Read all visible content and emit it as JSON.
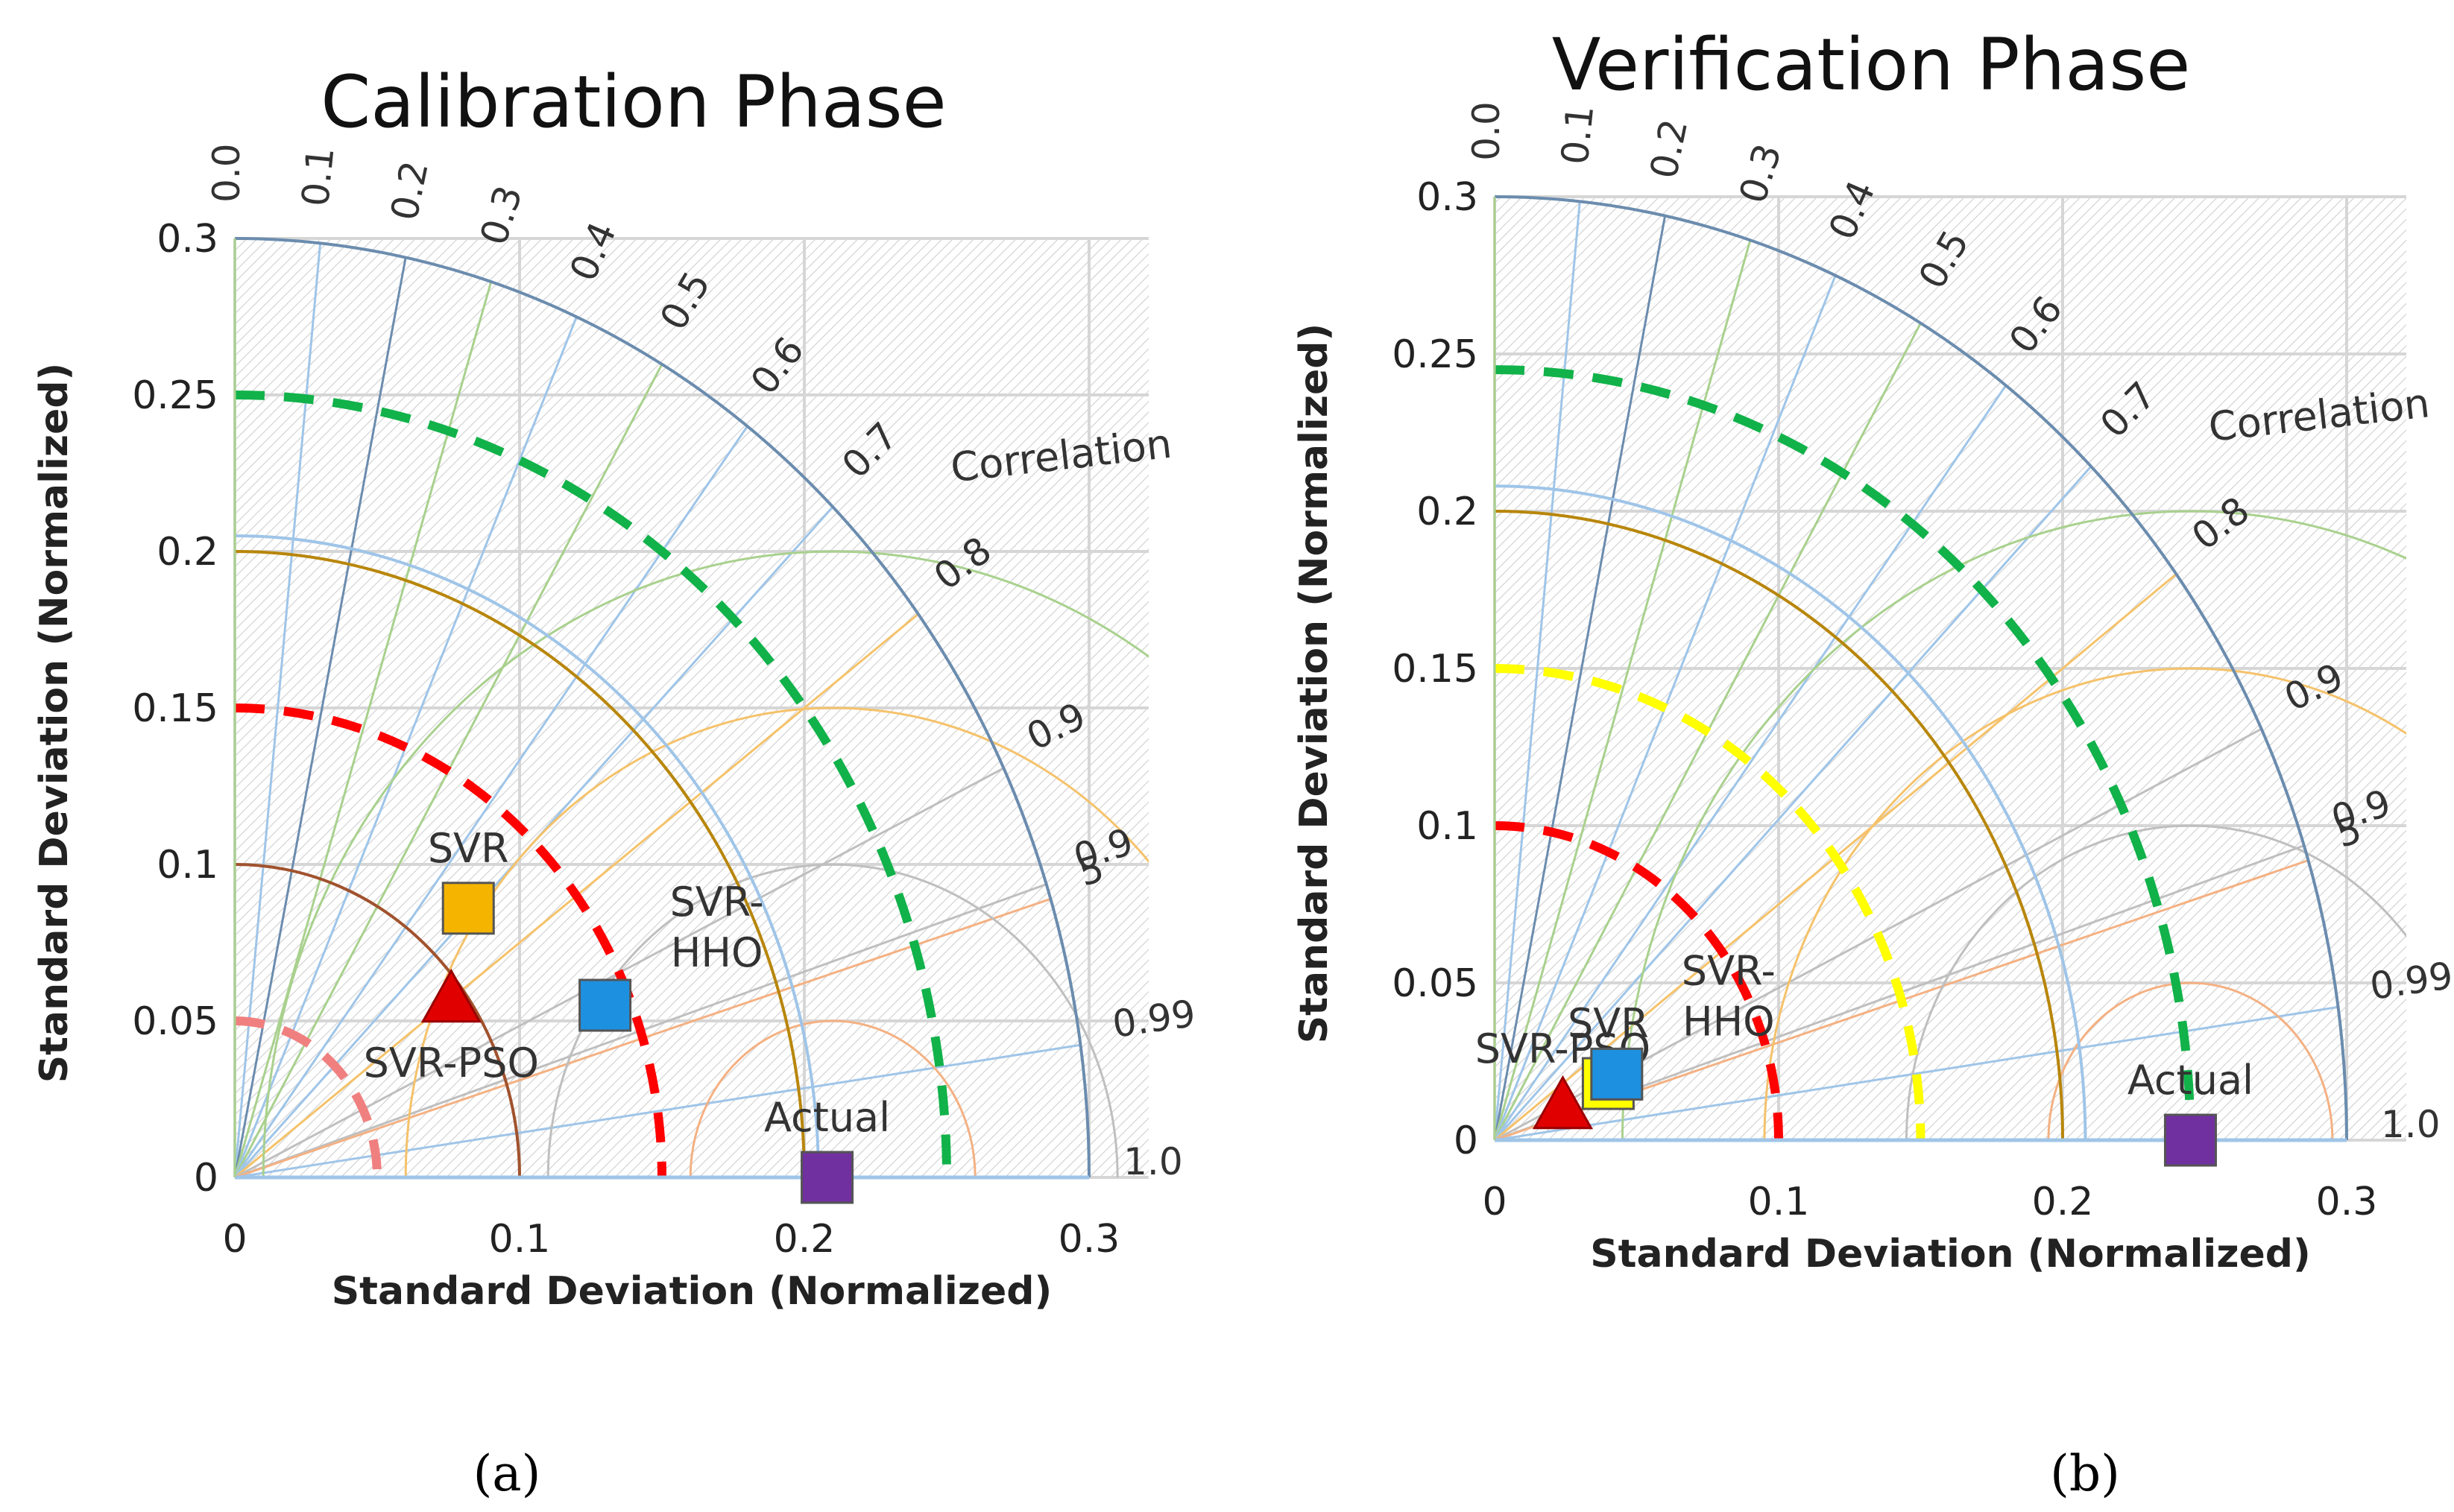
{
  "figure": {
    "captions": [
      "(a)",
      "(b)"
    ]
  },
  "colors": {
    "grid": "#d6d6d6",
    "hatch": "#c9c9c9",
    "axis_arc": "#6b8cae",
    "svr": "#f5b400",
    "svr_pso": "#e00000",
    "svr_hho": "#1e90e0",
    "actual": "#7030a0",
    "svr_verification": "#ffff00",
    "green_dash": "#11b24a",
    "red_dash": "#ff0000",
    "yellow_dash": "#ffff00",
    "light_red_dash": "#f08080"
  },
  "chart_data": [
    {
      "type": "scatter",
      "subtype": "taylor-diagram",
      "title": "Calibration Phase",
      "xlabel": "Standard Deviation (Normalized)",
      "ylabel": "Standard Deviation (Normalized)",
      "xlim": [
        0,
        0.3
      ],
      "ylim": [
        0,
        0.3
      ],
      "x_ticks": [
        "0",
        "0.1",
        "0.2",
        "0.3"
      ],
      "y_ticks": [
        "0",
        "0.05",
        "0.1",
        "0.15",
        "0.2",
        "0.25",
        "0.3"
      ],
      "correlation_label": "Correlation",
      "correlation_ticks": [
        {
          "label": "0.0",
          "r": 0.0
        },
        {
          "label": "0.1",
          "r": 0.1
        },
        {
          "label": "0.2",
          "r": 0.2
        },
        {
          "label": "0.3",
          "r": 0.3
        },
        {
          "label": "0.4",
          "r": 0.4
        },
        {
          "label": "0.5",
          "r": 0.5
        },
        {
          "label": "0.6",
          "r": 0.6
        },
        {
          "label": "0.7",
          "r": 0.7
        },
        {
          "label": "0.8",
          "r": 0.8
        },
        {
          "label": "0.9",
          "r": 0.9
        },
        {
          "label": "0.9",
          "r": 0.95
        },
        {
          "label": "5",
          "r": 0.955
        },
        {
          "label": "0.99",
          "r": 0.99
        },
        {
          "label": "1.0",
          "r": 1.0
        }
      ],
      "reference_std": 0.21,
      "std_arcs": [
        {
          "sd": 0.05,
          "style": "dashed",
          "color": "light_red_dash"
        },
        {
          "sd": 0.1,
          "style": "solid",
          "color": "#a0522d"
        },
        {
          "sd": 0.15,
          "style": "dashed",
          "color": "red_dash"
        },
        {
          "sd": 0.2,
          "style": "solid",
          "color": "#b8860b"
        },
        {
          "sd": 0.205,
          "style": "solid",
          "color": "#9fc5e8"
        },
        {
          "sd": 0.25,
          "style": "dashed",
          "color": "green_dash"
        },
        {
          "sd": 0.3,
          "style": "solid",
          "color": "axis_arc"
        }
      ],
      "rmsd_arcs": [
        0.05,
        0.1,
        0.15,
        0.2
      ],
      "series": [
        {
          "name": "SVR",
          "x": 0.082,
          "y": 0.086,
          "marker": "square",
          "color": "svr",
          "label_pos": "above"
        },
        {
          "name": "SVR-PSO",
          "x": 0.076,
          "y": 0.056,
          "marker": "triangle",
          "color": "svr_pso",
          "label_pos": "below"
        },
        {
          "name": "SVR-HHO",
          "x": 0.13,
          "y": 0.055,
          "marker": "square",
          "color": "svr_hho",
          "label_lines": [
            "SVR-",
            "HHO"
          ]
        },
        {
          "name": "Actual",
          "x": 0.208,
          "y": 0.0,
          "marker": "square",
          "color": "actual",
          "label_pos": "above"
        }
      ]
    },
    {
      "type": "scatter",
      "subtype": "taylor-diagram",
      "title": "Verification Phase",
      "xlabel": "Standard Deviation (Normalized)",
      "ylabel": "Standard Deviation (Normalized)",
      "xlim": [
        0,
        0.3
      ],
      "ylim": [
        0,
        0.3
      ],
      "x_ticks": [
        "0",
        "0.1",
        "0.2",
        "0.3"
      ],
      "y_ticks": [
        "0",
        "0.05",
        "0.1",
        "0.15",
        "0.2",
        "0.25",
        "0.3"
      ],
      "correlation_label": "Correlation",
      "correlation_ticks": [
        {
          "label": "0.0",
          "r": 0.0
        },
        {
          "label": "0.1",
          "r": 0.1
        },
        {
          "label": "0.2",
          "r": 0.2
        },
        {
          "label": "0.3",
          "r": 0.3
        },
        {
          "label": "0.4",
          "r": 0.4
        },
        {
          "label": "0.5",
          "r": 0.5
        },
        {
          "label": "0.6",
          "r": 0.6
        },
        {
          "label": "0.7",
          "r": 0.7
        },
        {
          "label": "0.8",
          "r": 0.8
        },
        {
          "label": "0.9",
          "r": 0.9
        },
        {
          "label": "0.9",
          "r": 0.95
        },
        {
          "label": "5",
          "r": 0.955
        },
        {
          "label": "0.99",
          "r": 0.99
        },
        {
          "label": "1.0",
          "r": 1.0
        }
      ],
      "reference_std": 0.245,
      "std_arcs": [
        {
          "sd": 0.1,
          "style": "dashed",
          "color": "red_dash"
        },
        {
          "sd": 0.15,
          "style": "dashed",
          "color": "yellow_dash"
        },
        {
          "sd": 0.2,
          "style": "solid",
          "color": "#b8860b"
        },
        {
          "sd": 0.208,
          "style": "solid",
          "color": "#9fc5e8"
        },
        {
          "sd": 0.245,
          "style": "dashed",
          "color": "green_dash"
        },
        {
          "sd": 0.3,
          "style": "solid",
          "color": "axis_arc"
        }
      ],
      "rmsd_arcs": [
        0.05,
        0.1,
        0.15,
        0.2
      ],
      "series": [
        {
          "name": "SVR",
          "x": 0.04,
          "y": 0.018,
          "marker": "square",
          "color": "svr_verification",
          "label_pos": "above"
        },
        {
          "name": "SVR-PSO",
          "x": 0.024,
          "y": 0.01,
          "marker": "triangle",
          "color": "svr_pso",
          "label_pos": "above"
        },
        {
          "name": "SVR-HHO",
          "x": 0.043,
          "y": 0.021,
          "marker": "square",
          "color": "svr_hho",
          "label_lines": [
            "SVR-",
            "HHO"
          ]
        },
        {
          "name": "Actual",
          "x": 0.245,
          "y": 0.0,
          "marker": "square",
          "color": "actual",
          "label_pos": "above"
        }
      ]
    }
  ]
}
